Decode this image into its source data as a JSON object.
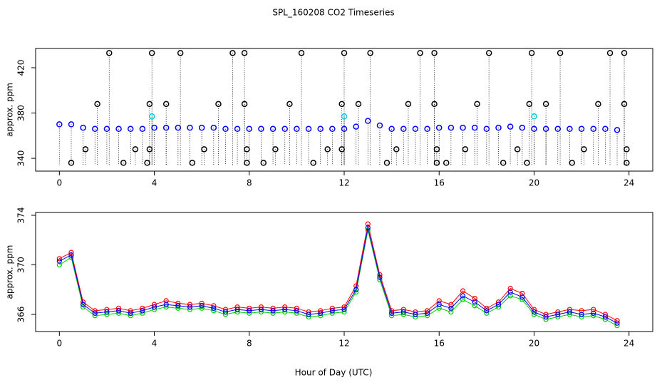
{
  "title": "SPL_160208  CO2 Timeseries",
  "x_label": "Hour of Day (UTC)",
  "chart_data": [
    {
      "type": "scatter",
      "y_label": "approx. ppm",
      "xlim": [
        -1,
        25
      ],
      "xticks": [
        0,
        4,
        8,
        12,
        16,
        20,
        24
      ],
      "ylim": [
        328.7,
        437
      ],
      "yticks": [
        340,
        380,
        420
      ],
      "x": [
        0,
        0.5,
        1,
        1.5,
        2,
        2.5,
        3,
        3.5,
        4,
        4.5,
        5,
        5.5,
        6,
        6.5,
        7,
        7.5,
        8,
        8.5,
        9,
        9.5,
        10,
        10.5,
        11,
        11.5,
        12,
        12.5,
        13,
        13.5,
        14,
        14.5,
        15,
        15.5,
        16,
        16.5,
        17,
        17.5,
        18,
        18.5,
        19,
        19.5,
        20,
        20.5,
        21,
        21.5,
        22,
        22.5,
        23,
        23.5
      ],
      "series": [
        {
          "color": "#0000ff",
          "values": [
            370,
            370,
            367,
            366,
            366,
            366,
            366,
            366,
            367,
            367,
            367,
            367,
            367,
            367,
            366,
            366,
            366,
            366,
            366,
            366,
            366,
            366,
            366,
            366,
            366,
            368,
            373,
            369,
            366,
            366,
            366,
            366,
            367,
            367,
            367,
            367,
            366,
            367,
            368,
            367,
            366,
            366,
            366,
            366,
            366,
            366,
            366,
            365
          ]
        },
        {
          "color": "#000000",
          "x": [
            2.1,
            3.9,
            5.1,
            7.3,
            7.8,
            10.2,
            12,
            13.1,
            15.2,
            15.8,
            18.1,
            19.9,
            21.1,
            23.2,
            23.8,
            1.6,
            3.8,
            4.5,
            6.7,
            7.8,
            9.7,
            11.9,
            12.6,
            14.7,
            15.8,
            17.6,
            19.8,
            20.5,
            22.7,
            23.8,
            1.1,
            3.2,
            3.8,
            6.1,
            7.9,
            9.1,
            11.3,
            11.9,
            14.2,
            15.9,
            17.1,
            19.3,
            22.1,
            23.9,
            0.5,
            2.7,
            3.7,
            5.6,
            7.9,
            8.6,
            10.7,
            13.8,
            15.9,
            16.3,
            18.7,
            19.7,
            21.6,
            23.9
          ],
          "values": [
            433,
            433,
            433,
            433,
            433,
            433,
            433,
            433,
            433,
            433,
            433,
            433,
            433,
            433,
            433,
            388,
            388,
            388,
            388,
            388,
            388,
            388,
            388,
            388,
            388,
            388,
            388,
            388,
            388,
            388,
            348,
            348,
            348,
            348,
            348,
            348,
            348,
            348,
            348,
            348,
            348,
            348,
            348,
            348,
            336,
            336,
            336,
            336,
            336,
            336,
            336,
            336,
            336,
            336,
            336,
            336,
            336,
            336
          ]
        },
        {
          "color": "#00cccc",
          "x": [
            3.9,
            12.0,
            20.0
          ],
          "values": [
            377,
            377,
            377
          ]
        }
      ]
    },
    {
      "type": "line",
      "y_label": "approx. ppm",
      "xlim": [
        -1,
        25
      ],
      "xticks": [
        0,
        4,
        8,
        12,
        16,
        20,
        24
      ],
      "ylim": [
        364.62,
        374.23
      ],
      "yticks": [
        366,
        370,
        374
      ],
      "x": [
        0,
        0.5,
        1,
        1.5,
        2,
        2.5,
        3,
        3.5,
        4,
        4.5,
        5,
        5.5,
        6,
        6.5,
        7,
        7.5,
        8,
        8.5,
        9,
        9.5,
        10,
        10.5,
        11,
        11.5,
        12,
        12.5,
        13,
        13.5,
        14,
        14.5,
        15,
        15.5,
        16,
        16.5,
        17,
        17.5,
        18,
        18.5,
        19,
        19.5,
        20,
        20.5,
        21,
        21.5,
        22,
        22.5,
        23,
        23.5
      ],
      "series": [
        {
          "color": "#ff0000",
          "values": [
            370.5,
            371.0,
            367.0,
            366.3,
            366.4,
            366.5,
            366.3,
            366.5,
            366.8,
            367.1,
            366.9,
            366.8,
            366.9,
            366.7,
            366.4,
            366.6,
            366.5,
            366.6,
            366.5,
            366.6,
            366.5,
            366.2,
            366.3,
            366.5,
            366.6,
            368.3,
            373.3,
            369.2,
            366.3,
            366.4,
            366.2,
            366.3,
            367.1,
            366.8,
            367.9,
            367.3,
            366.5,
            367.0,
            368.1,
            367.7,
            366.4,
            366.0,
            366.2,
            366.4,
            366.3,
            366.4,
            366.0,
            365.5
          ]
        },
        {
          "color": "#00cc00",
          "values": [
            370.0,
            370.6,
            366.6,
            365.9,
            366.0,
            366.1,
            365.9,
            366.1,
            366.4,
            366.6,
            366.5,
            366.4,
            366.5,
            366.3,
            366.0,
            366.2,
            366.1,
            366.2,
            366.1,
            366.2,
            366.1,
            365.8,
            365.9,
            366.1,
            366.2,
            367.8,
            372.8,
            368.8,
            365.9,
            366.0,
            365.8,
            365.9,
            366.5,
            366.2,
            367.2,
            366.7,
            366.1,
            366.6,
            367.5,
            367.2,
            366.0,
            365.6,
            365.8,
            366.0,
            365.8,
            365.9,
            365.6,
            365.1
          ]
        },
        {
          "color": "#0000ff",
          "values": [
            370.3,
            370.8,
            366.8,
            366.1,
            366.2,
            366.3,
            366.1,
            366.3,
            366.6,
            366.8,
            366.7,
            366.6,
            366.7,
            366.5,
            366.2,
            366.4,
            366.3,
            366.4,
            366.3,
            366.4,
            366.3,
            366.0,
            366.1,
            366.3,
            366.4,
            368.0,
            373.0,
            369.0,
            366.1,
            366.2,
            366.0,
            366.1,
            366.8,
            366.5,
            367.5,
            367.0,
            366.3,
            366.8,
            367.8,
            367.4,
            366.2,
            365.8,
            366.0,
            366.2,
            366.0,
            366.1,
            365.8,
            365.3
          ]
        }
      ]
    }
  ]
}
